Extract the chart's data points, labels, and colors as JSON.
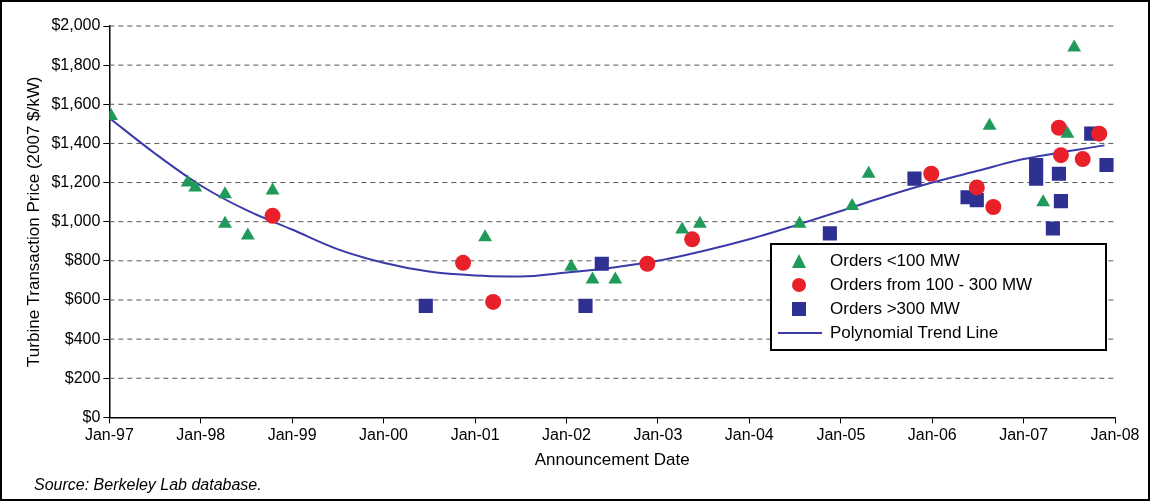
{
  "chart_data": {
    "type": "scatter",
    "xlabel": "Announcement Date",
    "ylabel": "Turbine Transaction Price (2007 $/kW)",
    "xlim": [
      "1997-01-01",
      "2008-01-01"
    ],
    "xticks": [
      {
        "value": "1997-01-01",
        "label": "Jan-97"
      },
      {
        "value": "1998-01-01",
        "label": "Jan-98"
      },
      {
        "value": "1999-01-01",
        "label": "Jan-99"
      },
      {
        "value": "2000-01-01",
        "label": "Jan-00"
      },
      {
        "value": "2001-01-01",
        "label": "Jan-01"
      },
      {
        "value": "2002-01-01",
        "label": "Jan-02"
      },
      {
        "value": "2003-01-01",
        "label": "Jan-03"
      },
      {
        "value": "2004-01-01",
        "label": "Jan-04"
      },
      {
        "value": "2005-01-01",
        "label": "Jan-05"
      },
      {
        "value": "2006-01-01",
        "label": "Jan-06"
      },
      {
        "value": "2007-01-01",
        "label": "Jan-07"
      },
      {
        "value": "2008-01-01",
        "label": "Jan-08"
      }
    ],
    "ylim": [
      0,
      2000
    ],
    "yticks": [
      {
        "value": 0,
        "label": "$0"
      },
      {
        "value": 200,
        "label": "$200"
      },
      {
        "value": 400,
        "label": "$400"
      },
      {
        "value": 600,
        "label": "$600"
      },
      {
        "value": 800,
        "label": "$800"
      },
      {
        "value": 1000,
        "label": "$1,000"
      },
      {
        "value": 1200,
        "label": "$1,200"
      },
      {
        "value": 1400,
        "label": "$1,400"
      },
      {
        "value": 1600,
        "label": "$1,600"
      },
      {
        "value": 1800,
        "label": "$1,800"
      },
      {
        "value": 2000,
        "label": "$2,000"
      }
    ],
    "grid": "y",
    "legend": "bottom right",
    "series": [
      {
        "name": "Orders <100 MW",
        "marker": "triangle",
        "color": "#1f9a5a",
        "x": [
          "1997-01-08",
          "1997-11-10",
          "1997-12-10",
          "1998-04-08",
          "1998-04-08",
          "1998-07-08",
          "1998-10-15",
          "2001-02-10",
          "2002-01-20",
          "2002-04-15",
          "2002-07-15",
          "2003-04-08",
          "2003-06-18",
          "2004-07-20",
          "2005-02-15",
          "2005-04-22",
          "2006-08-18",
          "2007-03-20",
          "2007-06-25",
          "2007-07-22"
        ],
        "values": [
          1540,
          1200,
          1175,
          1140,
          990,
          930,
          1160,
          920,
          770,
          705,
          705,
          960,
          990,
          990,
          1080,
          1245,
          1490,
          1100,
          1450,
          1890
        ]
      },
      {
        "name": "Orders from 100 - 300 MW",
        "marker": "circle",
        "color": "#e8202a",
        "x": [
          "1998-10-15",
          "2000-11-14",
          "2001-03-14",
          "2002-11-20",
          "2003-05-18",
          "2005-12-28",
          "2006-06-28",
          "2006-09-02",
          "2007-05-22",
          "2007-05-30",
          "2007-08-25",
          "2007-10-30"
        ],
        "values": [
          1030,
          790,
          590,
          785,
          910,
          1245,
          1175,
          1075,
          1480,
          1340,
          1320,
          1450
        ]
      },
      {
        "name": "Orders >300 MW",
        "marker": "square",
        "color": "#2e3192",
        "x": [
          "2000-06-18",
          "2002-03-18",
          "2002-05-22",
          "2004-11-18",
          "2005-10-22",
          "2006-05-22",
          "2006-06-28",
          "2007-02-20",
          "2007-02-20",
          "2007-05-22",
          "2007-05-30",
          "2007-04-28",
          "2007-09-28",
          "2007-11-28"
        ],
        "values": [
          570,
          570,
          785,
          940,
          1220,
          1125,
          1110,
          1290,
          1220,
          1245,
          1105,
          965,
          1450,
          1290
        ]
      },
      {
        "name": "Polynomial Trend Line",
        "type": "line",
        "marker": "none",
        "line_style": "solid",
        "color": "#3a3aa8",
        "x": [
          "1997-01-01",
          "1997-07-01",
          "1998-01-01",
          "1998-07-01",
          "1999-01-01",
          "1999-07-01",
          "2000-01-01",
          "2000-07-01",
          "2001-01-01",
          "2001-07-01",
          "2002-01-01",
          "2002-07-01",
          "2003-01-01",
          "2003-07-01",
          "2004-01-01",
          "2004-07-01",
          "2005-01-01",
          "2005-07-01",
          "2006-01-01",
          "2006-07-01",
          "2007-01-01",
          "2007-11-20"
        ],
        "values": [
          1530,
          1350,
          1185,
          1060,
          960,
          860,
          790,
          745,
          725,
          720,
          740,
          765,
          800,
          850,
          910,
          980,
          1055,
          1130,
          1200,
          1260,
          1320,
          1390
        ]
      }
    ],
    "annotations": [
      "Source: Berkeley Lab database."
    ]
  }
}
